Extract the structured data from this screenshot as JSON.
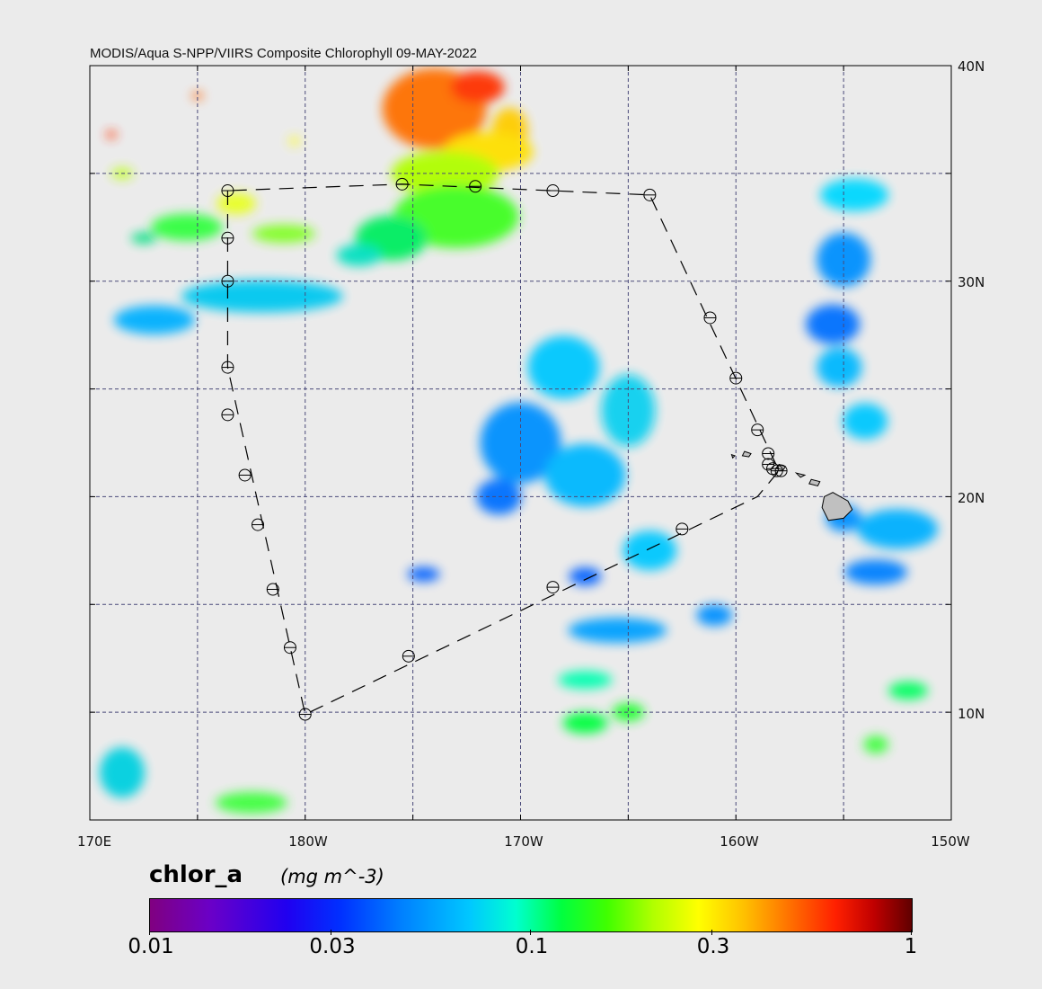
{
  "title": "MODIS/Aqua S-NPP/VIIRS Composite Chlorophyll 09-MAY-2022",
  "map": {
    "extent": {
      "lon_min": 170,
      "lon_max": 210,
      "lat_min": 5,
      "lat_max": 40
    },
    "lat_labels": [
      "40N",
      "30N",
      "20N",
      "10N"
    ],
    "lon_labels": [
      "170E",
      "180W",
      "170W",
      "160W",
      "150W"
    ],
    "gridline_color": "#4a4a7a",
    "background_color": "#ebebeb",
    "land_color": "#c0c0c0"
  },
  "legend": {
    "variable": "chlor_a",
    "units": "(mg m^-3)",
    "scale": "log",
    "range": [
      0.01,
      1
    ],
    "tick_labels": [
      "0.01",
      "0.03",
      "0.1",
      "0.3",
      "1"
    ],
    "colormap": [
      "#800080",
      "#2000f0",
      "#0080ff",
      "#00c8ff",
      "#00ff40",
      "#b0ff00",
      "#ffff00",
      "#ff7000",
      "#ff2000",
      "#600000"
    ]
  },
  "cruise_track": {
    "stations": [
      {
        "lon": 176.4,
        "lat": 34.2
      },
      {
        "lon": 176.4,
        "lat": 32.0
      },
      {
        "lon": 176.4,
        "lat": 30.0
      },
      {
        "lon": 176.4,
        "lat": 26.0
      },
      {
        "lon": 176.4,
        "lat": 23.8
      },
      {
        "lon": 177.2,
        "lat": 21.0
      },
      {
        "lon": 177.8,
        "lat": 18.7
      },
      {
        "lon": 178.5,
        "lat": 15.7
      },
      {
        "lon": 179.3,
        "lat": 13.0
      },
      {
        "lon": 180.0,
        "lat": 9.9
      },
      {
        "lon": 184.8,
        "lat": 12.6
      },
      {
        "lon": 191.5,
        "lat": 15.8
      },
      {
        "lon": 197.5,
        "lat": 18.5
      },
      {
        "lon": 201.7,
        "lat": 21.3
      },
      {
        "lon": 201.9,
        "lat": 21.2
      },
      {
        "lon": 202.1,
        "lat": 21.2
      },
      {
        "lon": 201.5,
        "lat": 21.5
      },
      {
        "lon": 201.5,
        "lat": 22.0
      },
      {
        "lon": 201.0,
        "lat": 23.1
      },
      {
        "lon": 200.0,
        "lat": 25.5
      },
      {
        "lon": 198.8,
        "lat": 28.3
      },
      {
        "lon": 196.0,
        "lat": 34.0
      },
      {
        "lon": 191.5,
        "lat": 34.2
      },
      {
        "lon": 187.9,
        "lat": 34.4
      },
      {
        "lon": 184.5,
        "lat": 34.5
      }
    ],
    "route": [
      [
        176.4,
        34.2
      ],
      [
        176.4,
        26.0
      ],
      [
        180.0,
        9.9
      ],
      [
        201.0,
        20.0
      ],
      [
        202.0,
        21.2
      ],
      [
        196.0,
        34.0
      ],
      [
        184.5,
        34.5
      ],
      [
        176.4,
        34.2
      ]
    ]
  },
  "chl_patches": [
    {
      "lon": 186.0,
      "lat": 38.0,
      "rx": 58,
      "ry": 45,
      "color": "#ff7000"
    },
    {
      "lon": 188.0,
      "lat": 39.0,
      "rx": 30,
      "ry": 18,
      "color": "#ff3000"
    },
    {
      "lon": 189.5,
      "lat": 37.0,
      "rx": 20,
      "ry": 25,
      "color": "#ffcc00"
    },
    {
      "lon": 188.5,
      "lat": 36.0,
      "rx": 50,
      "ry": 22,
      "color": "#ffe000"
    },
    {
      "lon": 186.5,
      "lat": 35.0,
      "rx": 60,
      "ry": 25,
      "color": "#b0ff00"
    },
    {
      "lon": 187.0,
      "lat": 33.0,
      "rx": 70,
      "ry": 35,
      "color": "#40ff20"
    },
    {
      "lon": 184.0,
      "lat": 32.0,
      "rx": 40,
      "ry": 25,
      "color": "#00ee60"
    },
    {
      "lon": 182.5,
      "lat": 31.2,
      "rx": 25,
      "ry": 12,
      "color": "#00e0c0"
    },
    {
      "lon": 178.0,
      "lat": 29.3,
      "rx": 90,
      "ry": 18,
      "color": "#00c8f0"
    },
    {
      "lon": 173.0,
      "lat": 28.2,
      "rx": 45,
      "ry": 16,
      "color": "#00b0ff"
    },
    {
      "lon": 174.5,
      "lat": 32.5,
      "rx": 40,
      "ry": 15,
      "color": "#30ff40"
    },
    {
      "lon": 176.8,
      "lat": 33.6,
      "rx": 22,
      "ry": 12,
      "color": "#e8ff20"
    },
    {
      "lon": 179.0,
      "lat": 32.2,
      "rx": 35,
      "ry": 10,
      "color": "#80ff20"
    },
    {
      "lon": 192.0,
      "lat": 26.0,
      "rx": 40,
      "ry": 35,
      "color": "#00c8ff"
    },
    {
      "lon": 190.0,
      "lat": 22.5,
      "rx": 45,
      "ry": 45,
      "color": "#0090ff"
    },
    {
      "lon": 193.0,
      "lat": 21.0,
      "rx": 45,
      "ry": 35,
      "color": "#00b8ff"
    },
    {
      "lon": 195.0,
      "lat": 24.0,
      "rx": 30,
      "ry": 40,
      "color": "#10d0f0"
    },
    {
      "lon": 189.0,
      "lat": 20.0,
      "rx": 25,
      "ry": 20,
      "color": "#0070ff"
    },
    {
      "lon": 196.0,
      "lat": 17.5,
      "rx": 30,
      "ry": 22,
      "color": "#00c8ff"
    },
    {
      "lon": 193.0,
      "lat": 16.3,
      "rx": 18,
      "ry": 10,
      "color": "#0060ff"
    },
    {
      "lon": 185.5,
      "lat": 16.4,
      "rx": 18,
      "ry": 8,
      "color": "#0060ff"
    },
    {
      "lon": 194.5,
      "lat": 13.8,
      "rx": 55,
      "ry": 14,
      "color": "#00a0ff"
    },
    {
      "lon": 199.0,
      "lat": 14.5,
      "rx": 20,
      "ry": 12,
      "color": "#0090ff"
    },
    {
      "lon": 193.0,
      "lat": 11.5,
      "rx": 30,
      "ry": 10,
      "color": "#00ffb0"
    },
    {
      "lon": 193.0,
      "lat": 9.5,
      "rx": 25,
      "ry": 12,
      "color": "#00ff40"
    },
    {
      "lon": 195.0,
      "lat": 10.0,
      "rx": 18,
      "ry": 10,
      "color": "#20ff30"
    },
    {
      "lon": 205.5,
      "lat": 34.0,
      "rx": 38,
      "ry": 18,
      "color": "#00d8ff"
    },
    {
      "lon": 205.0,
      "lat": 31.0,
      "rx": 30,
      "ry": 30,
      "color": "#0090ff"
    },
    {
      "lon": 204.5,
      "lat": 28.0,
      "rx": 30,
      "ry": 22,
      "color": "#0070ff"
    },
    {
      "lon": 204.8,
      "lat": 26.0,
      "rx": 25,
      "ry": 22,
      "color": "#00b8ff"
    },
    {
      "lon": 206.0,
      "lat": 23.5,
      "rx": 25,
      "ry": 20,
      "color": "#00c8ff"
    },
    {
      "lon": 207.5,
      "lat": 18.5,
      "rx": 45,
      "ry": 22,
      "color": "#00b0ff"
    },
    {
      "lon": 205.0,
      "lat": 19.0,
      "rx": 20,
      "ry": 15,
      "color": "#0090ff"
    },
    {
      "lon": 206.5,
      "lat": 16.5,
      "rx": 35,
      "ry": 14,
      "color": "#0080ff"
    },
    {
      "lon": 208.0,
      "lat": 11.0,
      "rx": 22,
      "ry": 10,
      "color": "#00ff60"
    },
    {
      "lon": 206.5,
      "lat": 8.5,
      "rx": 14,
      "ry": 10,
      "color": "#40ff40"
    },
    {
      "lon": 171.5,
      "lat": 7.2,
      "rx": 25,
      "ry": 28,
      "color": "#00d0e0"
    },
    {
      "lon": 177.5,
      "lat": 5.8,
      "rx": 40,
      "ry": 12,
      "color": "#40ff40"
    },
    {
      "lon": 171.0,
      "lat": 36.8,
      "rx": 6,
      "ry": 4,
      "color": "#ff3000"
    },
    {
      "lon": 175.0,
      "lat": 38.6,
      "rx": 6,
      "ry": 4,
      "color": "#ff6000"
    },
    {
      "lon": 179.5,
      "lat": 36.5,
      "rx": 6,
      "ry": 5,
      "color": "#ffff30"
    },
    {
      "lon": 171.5,
      "lat": 35.0,
      "rx": 12,
      "ry": 6,
      "color": "#c0ff20"
    },
    {
      "lon": 172.5,
      "lat": 32.0,
      "rx": 14,
      "ry": 6,
      "color": "#00e080"
    }
  ],
  "land": [
    [
      [
        204.5,
        20.2
      ],
      [
        205.2,
        19.8
      ],
      [
        205.4,
        19.4
      ],
      [
        205.0,
        19.0
      ],
      [
        204.3,
        18.9
      ],
      [
        204.0,
        19.5
      ],
      [
        204.1,
        20.0
      ]
    ],
    [
      [
        203.5,
        20.8
      ],
      [
        203.9,
        20.7
      ],
      [
        203.8,
        20.5
      ],
      [
        203.4,
        20.6
      ]
    ],
    [
      [
        202.8,
        21.1
      ],
      [
        203.2,
        21.0
      ],
      [
        203.0,
        20.9
      ]
    ],
    [
      [
        202.0,
        21.5
      ],
      [
        202.3,
        21.4
      ],
      [
        202.2,
        21.25
      ],
      [
        201.9,
        21.3
      ]
    ],
    [
      [
        200.4,
        22.1
      ],
      [
        200.7,
        22.0
      ],
      [
        200.6,
        21.85
      ],
      [
        200.3,
        21.9
      ]
    ],
    [
      [
        199.8,
        21.95
      ],
      [
        199.95,
        21.9
      ],
      [
        199.85,
        21.8
      ]
    ]
  ]
}
